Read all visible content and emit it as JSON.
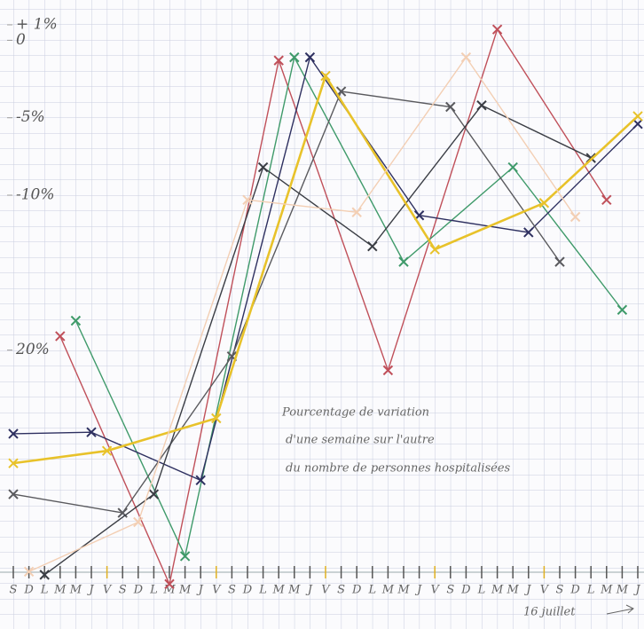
{
  "chart_data": {
    "type": "line",
    "annotations": [
      "Pourcentage de variation",
      "d'une semaine sur l'autre",
      "du nombre de personnes hospitalisées",
      "16 juillet"
    ],
    "categories": [
      "S",
      "D",
      "L",
      "M",
      "M",
      "J",
      "V",
      "S",
      "D",
      "L",
      "M",
      "M",
      "J",
      "V",
      "S",
      "D",
      "L",
      "M",
      "M",
      "J",
      "V",
      "S",
      "D",
      "L",
      "M",
      "M",
      "J",
      "V",
      "S",
      "D",
      "L",
      "M",
      "M",
      "J",
      "V",
      "S",
      "D",
      "L",
      "M",
      "M",
      "J"
    ],
    "xlim": [
      0,
      40
    ],
    "ylim": [
      -38,
      2.6
    ],
    "yticks": [
      {
        "value": 1,
        "label": "+ 1%"
      },
      {
        "value": 0,
        "label": "0"
      },
      {
        "value": -5,
        "label": "-5%"
      },
      {
        "value": -10,
        "label": "-10%"
      },
      {
        "value": -20,
        "label": "20%"
      }
    ],
    "series": [
      {
        "color": "#c0505a",
        "x": [
          3,
          10,
          17,
          24,
          31,
          38
        ],
        "values": [
          -19.1,
          -35.1,
          -1.3,
          -21.3,
          0.7,
          -10.3
        ]
      },
      {
        "color": "#3f9a6a",
        "x": [
          4,
          11,
          18,
          25,
          32,
          39
        ],
        "values": [
          -18.1,
          -33.3,
          -1.1,
          -14.3,
          -8.2,
          -17.4
        ]
      },
      {
        "color": "#2e3060",
        "x": [
          0,
          5,
          12,
          19,
          26,
          33,
          40
        ],
        "values": [
          -25.4,
          -25.3,
          -28.4,
          -1.1,
          -11.3,
          -12.4,
          -5.4
        ]
      },
      {
        "color": "#5a5a5e",
        "x": [
          0,
          7,
          14,
          21,
          28,
          35
        ],
        "values": [
          -29.3,
          -30.5,
          -20.4,
          -3.3,
          -4.3,
          -14.3
        ]
      },
      {
        "color": "#3a3d44",
        "x": [
          2,
          9,
          16,
          23,
          30,
          37
        ],
        "values": [
          -34.5,
          -29.3,
          -8.2,
          -13.3,
          -4.2,
          -7.6
        ]
      },
      {
        "color": "#e8c22a",
        "x": [
          0,
          6,
          13,
          20,
          27,
          34,
          40
        ],
        "values": [
          -27.3,
          -26.5,
          -24.4,
          -2.3,
          -13.5,
          -10.5,
          -4.9
        ]
      },
      {
        "color": "#f3cfb4",
        "x": [
          1,
          8,
          15,
          22,
          29,
          36
        ],
        "values": [
          -34.3,
          -31.1,
          -10.3,
          -11.1,
          -1.1,
          -11.4
        ]
      }
    ]
  }
}
